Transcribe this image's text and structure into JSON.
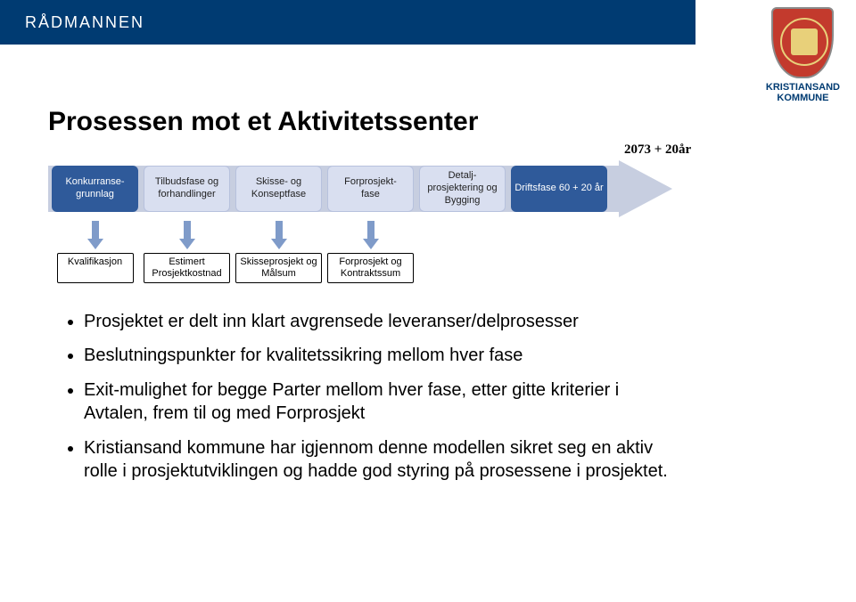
{
  "header": {
    "brand": "RÅDMANNEN"
  },
  "logo": {
    "line1": "KRISTIANSAND",
    "line2": "KOMMUNE"
  },
  "title": "Prosessen mot et Aktivitetssenter",
  "duration_label": "2073 + 20år",
  "arrow": {
    "fill": "#c7cee0",
    "stroke": "none"
  },
  "phases": {
    "items": [
      {
        "label": "Konkurranse-\ngrunnlag",
        "style": "blue"
      },
      {
        "label": "Tilbudsfase og forhandlinger",
        "style": "light"
      },
      {
        "label": "Skisse- og Konseptfase",
        "style": "light"
      },
      {
        "label": "Forprosjekt-\nfase",
        "style": "light"
      },
      {
        "label": "Detalj-\nprosjektering og Bygging",
        "style": "light"
      },
      {
        "label": "Driftsfase 60 + 20 år",
        "style": "blue",
        "wide": true
      }
    ],
    "blue_bg": "#2f5a9a",
    "light_bg": "#d9dff0",
    "light_border": "#b7c1dd"
  },
  "decisions": {
    "show": [
      true,
      true,
      true,
      true,
      false,
      false
    ],
    "items": [
      "Kvalifikasjon",
      "Estimert Prosjektkostnad",
      "Skisseprosjekt og Målsum",
      "Forprosjekt og Kontraktssum"
    ],
    "connector_color": "#7f9bc9"
  },
  "bullets": [
    "Prosjektet er delt inn klart avgrensede leveranser/delprosesser",
    "Beslutningspunkter for kvalitetssikring mellom hver fase",
    "Exit-mulighet for begge Parter mellom hver fase, etter gitte kriterier i Avtalen, frem til og med Forprosjekt",
    "Kristiansand kommune har igjennom denne modellen sikret seg en aktiv rolle i prosjektutviklingen og hadde god styring på prosessene  i prosjektet."
  ]
}
